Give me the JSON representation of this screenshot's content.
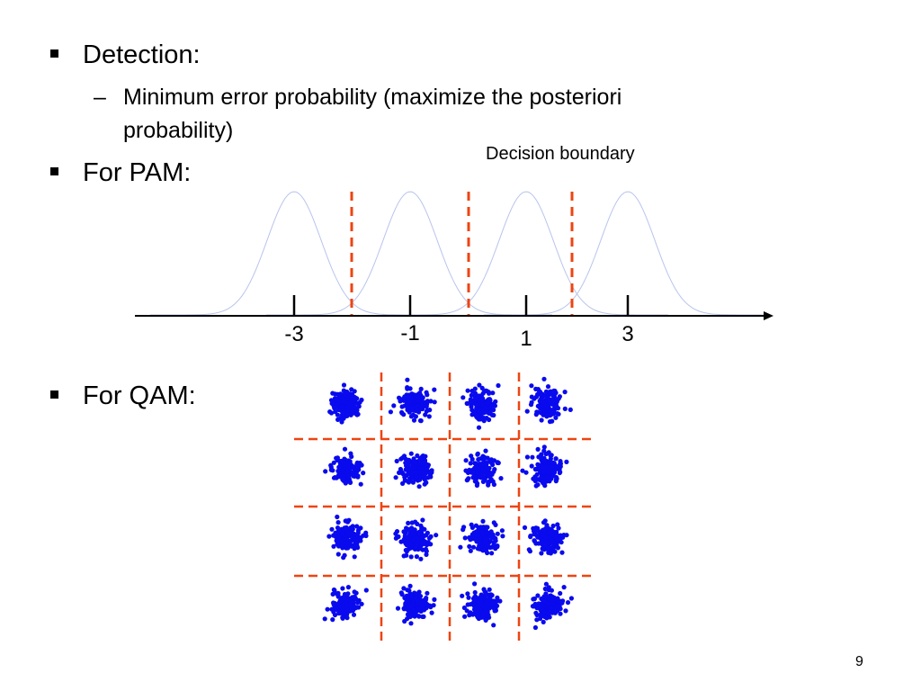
{
  "slide": {
    "bullets": [
      {
        "text": "Detection:"
      },
      {
        "text": "For PAM:"
      },
      {
        "text": "For QAM:"
      }
    ],
    "sub_bullet": {
      "dash": "–",
      "lines": [
        "Minimum error probability (maximize the posteriori",
        "probability)"
      ]
    },
    "annotation": "Decision boundary",
    "page_number": "9"
  },
  "colors": {
    "boundary": "#ee4411",
    "points": "#0a0aee",
    "gaussian": "#b8c4ec",
    "axis": "#000000"
  },
  "chart_data": [
    {
      "type": "line",
      "description_of_marks": "four Gaussian pdfs centered on PAM levels with dashed decision boundaries",
      "x_tick_labels": [
        "-3",
        "-1",
        "1",
        "3"
      ],
      "means": [
        -3,
        -1,
        1,
        3
      ],
      "decision_boundaries": [
        -2,
        0,
        2
      ],
      "xlim": [
        -6,
        6
      ]
    },
    {
      "type": "scatter",
      "grid": "4x4",
      "levels": [
        -3,
        -1,
        1,
        3
      ],
      "decision_boundaries": [
        -2,
        0,
        2
      ]
    }
  ]
}
